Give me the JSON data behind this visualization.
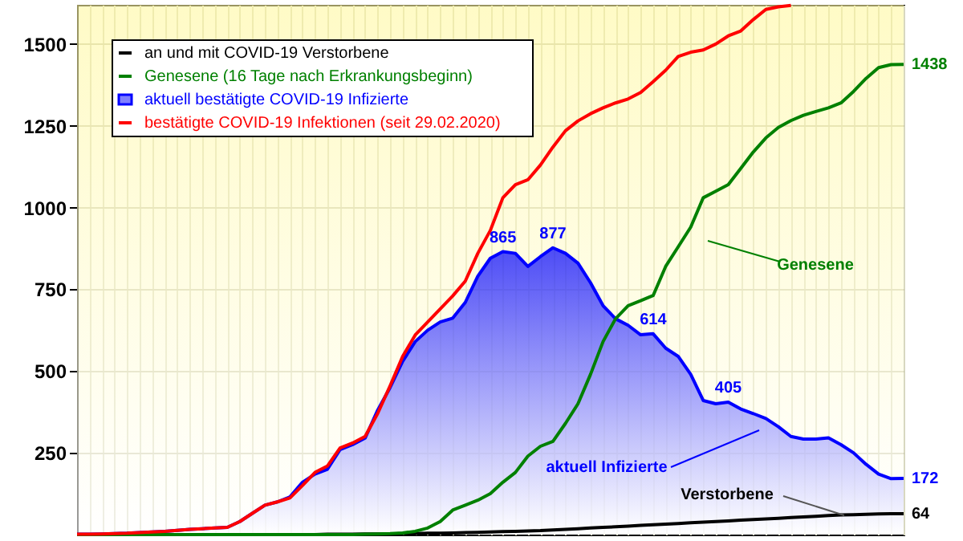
{
  "chart_data": {
    "type": "line",
    "categories": [
      null,
      null,
      null,
      null,
      null,
      null,
      null,
      null,
      null,
      null,
      null,
      null,
      null,
      null,
      null,
      null,
      null,
      null,
      null,
      null,
      null,
      null,
      null,
      null,
      null,
      null,
      null,
      null,
      null,
      null,
      null,
      null,
      null,
      null,
      null,
      null,
      null,
      null,
      null,
      null,
      null,
      null,
      null,
      null,
      null,
      null,
      null,
      null,
      null,
      null,
      null,
      null,
      null,
      null,
      null,
      null,
      null,
      null,
      null,
      null,
      null,
      null,
      null,
      null,
      null,
      null,
      null
    ],
    "series": [
      {
        "name": "an  und  mit  COVID-19  Verstorbene",
        "color": "#000000",
        "values": [
          0,
          0,
          0,
          0,
          0,
          0,
          0,
          0,
          0,
          0,
          0,
          0,
          0,
          0,
          0,
          0,
          0,
          0,
          0,
          0,
          1,
          1,
          1,
          2,
          2,
          2,
          3,
          3,
          4,
          4,
          5,
          6,
          7,
          8,
          9,
          10,
          11,
          12,
          14,
          16,
          18,
          20,
          22,
          24,
          26,
          28,
          30,
          32,
          34,
          36,
          38,
          40,
          42,
          44,
          46,
          48,
          50,
          52,
          54,
          56,
          58,
          60,
          61,
          62,
          63,
          64,
          64
        ],
        "value_labels": [
          null,
          null,
          null,
          null,
          null,
          null,
          null,
          null,
          null,
          null,
          null,
          null,
          null,
          null,
          null,
          null,
          null,
          null,
          null,
          null,
          null,
          null,
          null,
          null,
          null,
          null,
          null,
          null,
          null,
          null,
          null,
          null,
          null,
          null,
          null,
          null,
          null,
          null,
          null,
          null,
          null,
          null,
          null,
          null,
          null,
          null,
          null,
          null,
          null,
          null,
          null,
          null,
          null,
          null,
          null,
          null,
          null,
          null,
          null,
          null,
          null,
          null,
          null,
          null,
          null,
          null,
          "64"
        ]
      },
      {
        "name": "Genesene  (16  Tage  nach  Erkrankungsbeginn)",
        "color": "#008000",
        "values": [
          0,
          0,
          0,
          0,
          0,
          0,
          0,
          0,
          0,
          0,
          0,
          0,
          0,
          0,
          0,
          0,
          0,
          0,
          0,
          0,
          0,
          0,
          0,
          1,
          2,
          3,
          5,
          10,
          20,
          40,
          75,
          90,
          105,
          125,
          160,
          190,
          240,
          270,
          285,
          340,
          400,
          490,
          590,
          660,
          700,
          715,
          731,
          820,
          880,
          940,
          1030,
          1050,
          1070,
          1120,
          1170,
          1213,
          1245,
          1266,
          1282,
          1294,
          1305,
          1320,
          1355,
          1395,
          1428,
          1437,
          1438
        ],
        "value_labels": [
          null,
          null,
          null,
          null,
          null,
          null,
          null,
          null,
          null,
          null,
          null,
          null,
          null,
          null,
          null,
          null,
          null,
          null,
          null,
          null,
          null,
          null,
          null,
          null,
          null,
          null,
          null,
          null,
          null,
          null,
          null,
          null,
          null,
          null,
          null,
          null,
          null,
          null,
          null,
          null,
          null,
          null,
          null,
          null,
          null,
          null,
          null,
          null,
          null,
          null,
          null,
          null,
          null,
          null,
          null,
          null,
          null,
          null,
          null,
          null,
          null,
          null,
          null,
          null,
          null,
          null,
          "1438"
        ]
      },
      {
        "name": "aktuell  bestätigte  COVID-19  Infizierte",
        "color": "#0000ff",
        "type": "area",
        "values": [
          1,
          1,
          2,
          3,
          4,
          6,
          8,
          10,
          13,
          16,
          18,
          20,
          22,
          40,
          65,
          90,
          100,
          115,
          160,
          185,
          200,
          260,
          275,
          295,
          380,
          450,
          530,
          590,
          625,
          650,
          662,
          710,
          790,
          845,
          865,
          860,
          820,
          850,
          877,
          860,
          830,
          770,
          700,
          660,
          640,
          611,
          614,
          570,
          545,
          490,
          410,
          400,
          405,
          384,
          370,
          355,
          330,
          300,
          292,
          292,
          296,
          275,
          250,
          215,
          185,
          171,
          172
        ],
        "value_labels": [
          null,
          null,
          null,
          null,
          null,
          null,
          null,
          null,
          null,
          null,
          null,
          null,
          null,
          null,
          null,
          null,
          null,
          null,
          null,
          null,
          null,
          null,
          null,
          null,
          null,
          null,
          null,
          null,
          null,
          null,
          null,
          null,
          null,
          null,
          "865",
          null,
          null,
          null,
          "877",
          null,
          null,
          null,
          null,
          null,
          null,
          null,
          "614",
          null,
          null,
          null,
          null,
          null,
          "405",
          null,
          null,
          null,
          null,
          null,
          null,
          null,
          null,
          null,
          null,
          null,
          null,
          null,
          "172"
        ]
      },
      {
        "name": "bestätigte  COVID-19  Infektionen  (seit  29.02.2020)",
        "color": "#ff0000",
        "values": [
          1,
          1,
          2,
          3,
          4,
          6,
          8,
          10,
          13,
          16,
          18,
          20,
          22,
          40,
          65,
          90,
          100,
          112,
          150,
          190,
          210,
          265,
          280,
          300,
          370,
          455,
          545,
          610,
          650,
          690,
          730,
          775,
          860,
          930,
          1030,
          1070,
          1085,
          1130,
          1185,
          1235,
          1265,
          1287,
          1305,
          1320,
          1332,
          1352,
          1385,
          1420,
          1462,
          1475,
          1482,
          1500,
          1525,
          1540,
          1575,
          1606,
          1614,
          1618,
          null,
          null,
          null,
          null,
          null,
          null,
          null,
          null,
          null
        ]
      }
    ],
    "annotations": [
      "Genesene",
      "aktuell  Infizierte",
      "Verstorbene"
    ],
    "ylim": [
      0,
      1620
    ],
    "yticks": [
      250,
      500,
      750,
      1000,
      1250,
      1500
    ],
    "grid": true,
    "legend": "top left",
    "tick_labels": "y"
  }
}
